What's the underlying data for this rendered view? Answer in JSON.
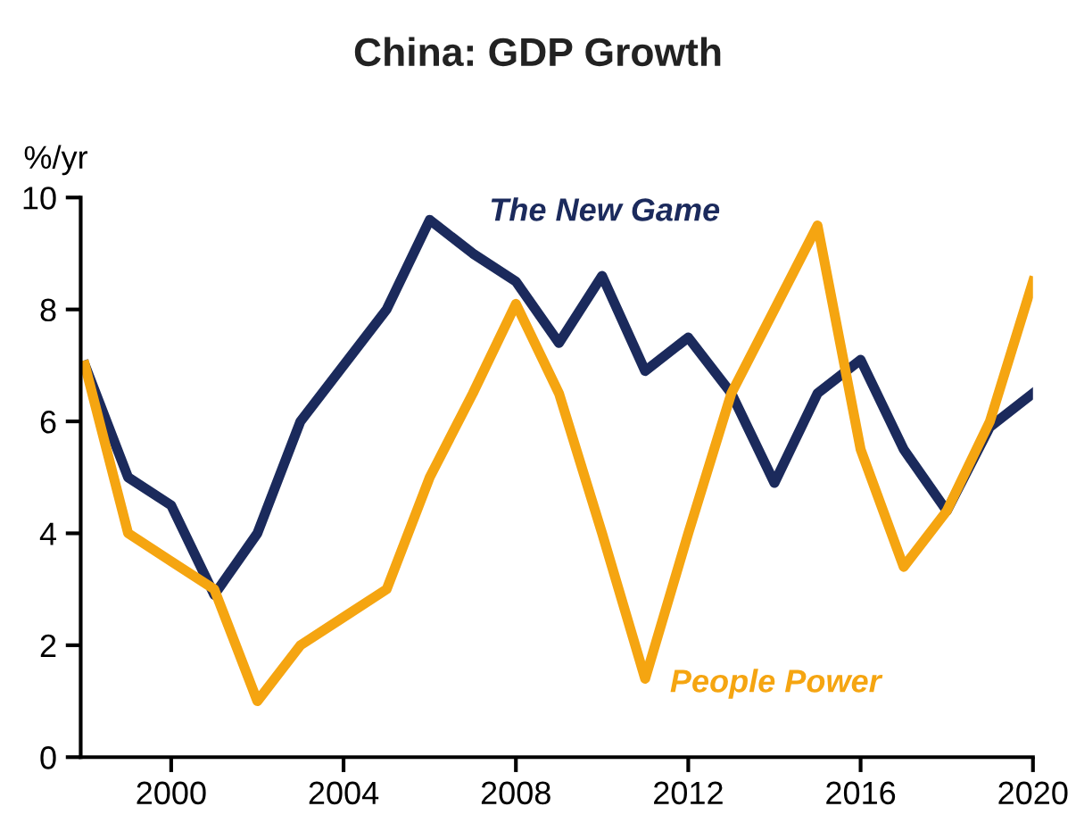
{
  "chart_data": {
    "type": "line",
    "title": "China: GDP Growth",
    "ylabel": "%/yr",
    "x": [
      1998,
      1999,
      2000,
      2001,
      2002,
      2003,
      2004,
      2005,
      2006,
      2007,
      2008,
      2009,
      2010,
      2011,
      2012,
      2013,
      2014,
      2015,
      2016,
      2017,
      2018,
      2019,
      2020
    ],
    "series": [
      {
        "name": "The New Game",
        "color": "#1b2a5c",
        "values": [
          7,
          5,
          4.5,
          2.9,
          4,
          6,
          7,
          8,
          9.6,
          9,
          8.5,
          7.4,
          8.6,
          6.9,
          7.5,
          6.5,
          4.9,
          6.5,
          7.1,
          5.5,
          4.4,
          5.9,
          6.5
        ]
      },
      {
        "name": "People Power",
        "color": "#f5a511",
        "values": [
          7,
          4,
          3.5,
          3,
          1,
          2,
          2.5,
          3,
          5,
          6.5,
          8.1,
          6.5,
          4,
          1.4,
          4,
          6.5,
          8,
          9.5,
          5.5,
          3.4,
          4.4,
          6,
          8.5
        ]
      }
    ],
    "xlim": [
      1997.9,
      2020
    ],
    "xticks": [
      2000,
      2004,
      2008,
      2012,
      2016,
      2020
    ],
    "ylim": [
      0,
      10
    ],
    "yticks": [
      0,
      2,
      4,
      6,
      8,
      10
    ],
    "grid": false,
    "legend": false,
    "marker": "none",
    "line_style": "solid"
  }
}
